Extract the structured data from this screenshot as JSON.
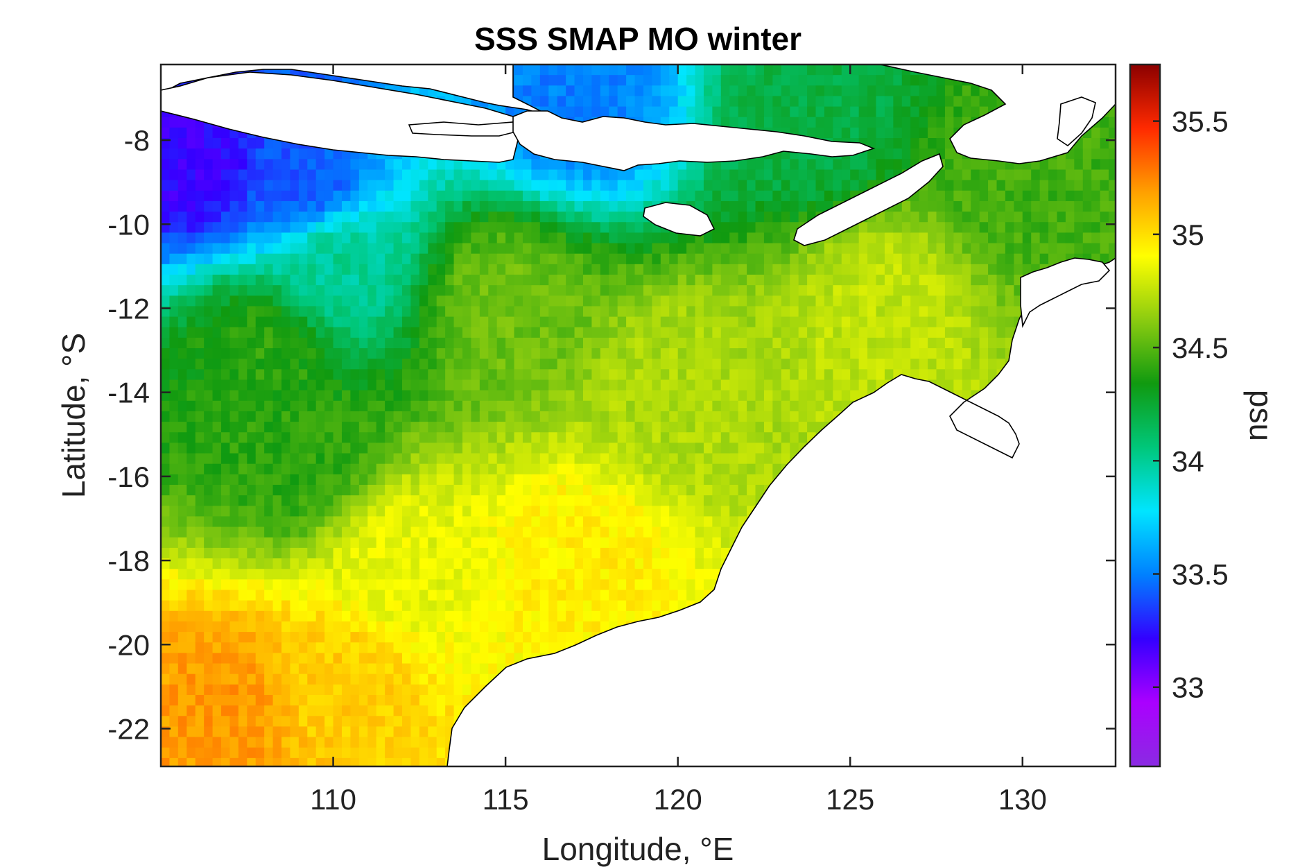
{
  "chart_data": {
    "type": "heatmap",
    "title": "SSS SMAP MO winter",
    "xlabel": "Longitude, °E",
    "ylabel": "Latitude, °S",
    "colorbar_label": "psu",
    "xlim": [
      105.0,
      132.7
    ],
    "ylim": [
      -22.9,
      -6.2
    ],
    "xticks": [
      110,
      115,
      120,
      125,
      130
    ],
    "xtick_labels": [
      "110",
      "115",
      "120",
      "125",
      "130"
    ],
    "yticks": [
      -8,
      -10,
      -12,
      -14,
      -16,
      -18,
      -20,
      -22
    ],
    "ytick_labels": [
      "-8",
      "-10",
      "-12",
      "-14",
      "-16",
      "-18",
      "-20",
      "-22"
    ],
    "colorbar_range": [
      32.65,
      35.75
    ],
    "colorbar_ticks": [
      33,
      33.5,
      34,
      34.5,
      35,
      35.5
    ],
    "colorbar_tick_labels": [
      "33",
      "33.5",
      "34",
      "34.5",
      "35",
      "35.5"
    ],
    "colormap": [
      "#8a2be2",
      "#aa00ff",
      "#3300ff",
      "#0080ff",
      "#00e5ff",
      "#00c77a",
      "#109a10",
      "#8ccc10",
      "#ffff00",
      "#ffa000",
      "#ff2a00",
      "#8b0000"
    ],
    "grid_resolution_deg": 0.25,
    "salinity_field_samples": [
      {
        "lon": 106,
        "lat": -8.5,
        "psu": 33.2
      },
      {
        "lon": 109,
        "lat": -9.0,
        "psu": 33.4
      },
      {
        "lon": 110,
        "lat": -11.0,
        "psu": 34.0
      },
      {
        "lon": 108,
        "lat": -13.0,
        "psu": 34.4
      },
      {
        "lon": 109,
        "lat": -15.5,
        "psu": 34.4
      },
      {
        "lon": 117,
        "lat": -7.0,
        "psu": 33.5
      },
      {
        "lon": 124,
        "lat": -7.5,
        "psu": 34.2
      },
      {
        "lon": 115,
        "lat": -12.0,
        "psu": 34.55
      },
      {
        "lon": 120,
        "lat": -14.0,
        "psu": 34.7
      },
      {
        "lon": 126,
        "lat": -12.0,
        "psu": 34.75
      },
      {
        "lon": 130,
        "lat": -9.0,
        "psu": 34.45
      },
      {
        "lon": 112,
        "lat": -18.0,
        "psu": 34.85
      },
      {
        "lon": 117,
        "lat": -18.0,
        "psu": 34.95
      },
      {
        "lon": 107,
        "lat": -21.5,
        "psu": 35.2
      },
      {
        "lon": 110,
        "lat": -21.0,
        "psu": 35.05
      }
    ]
  }
}
